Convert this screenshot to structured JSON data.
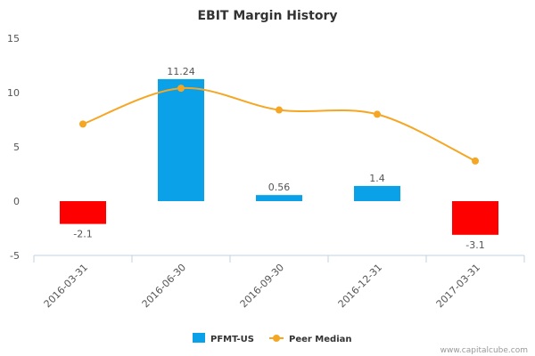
{
  "chart_data": {
    "type": "bar",
    "title": "EBIT Margin History",
    "categories": [
      "2016-03-31",
      "2016-06-30",
      "2016-09-30",
      "2016-12-31",
      "2017-03-31"
    ],
    "series": [
      {
        "name": "PFMT-US",
        "type": "bar",
        "values": [
          -2.1,
          11.24,
          0.56,
          1.4,
          -3.1
        ],
        "data_labels": [
          "-2.1",
          "11.24",
          "0.56",
          "1.4",
          "-3.1"
        ]
      },
      {
        "name": "Peer Median",
        "type": "line",
        "values": [
          7.1,
          10.4,
          8.4,
          8.0,
          3.7
        ]
      }
    ],
    "ylim": [
      -5,
      15
    ],
    "yticks": [
      "15",
      "10",
      "5",
      "0",
      "-5"
    ],
    "ytick_values": [
      15,
      10,
      5,
      0,
      -5
    ],
    "legend": "bottom-center",
    "colors": {
      "positive": "#0aa1e8",
      "negative": "#ff0000",
      "peer": "#f5a623",
      "axis": "#c0d0e0"
    }
  },
  "credit": "www.capitalcube.com"
}
